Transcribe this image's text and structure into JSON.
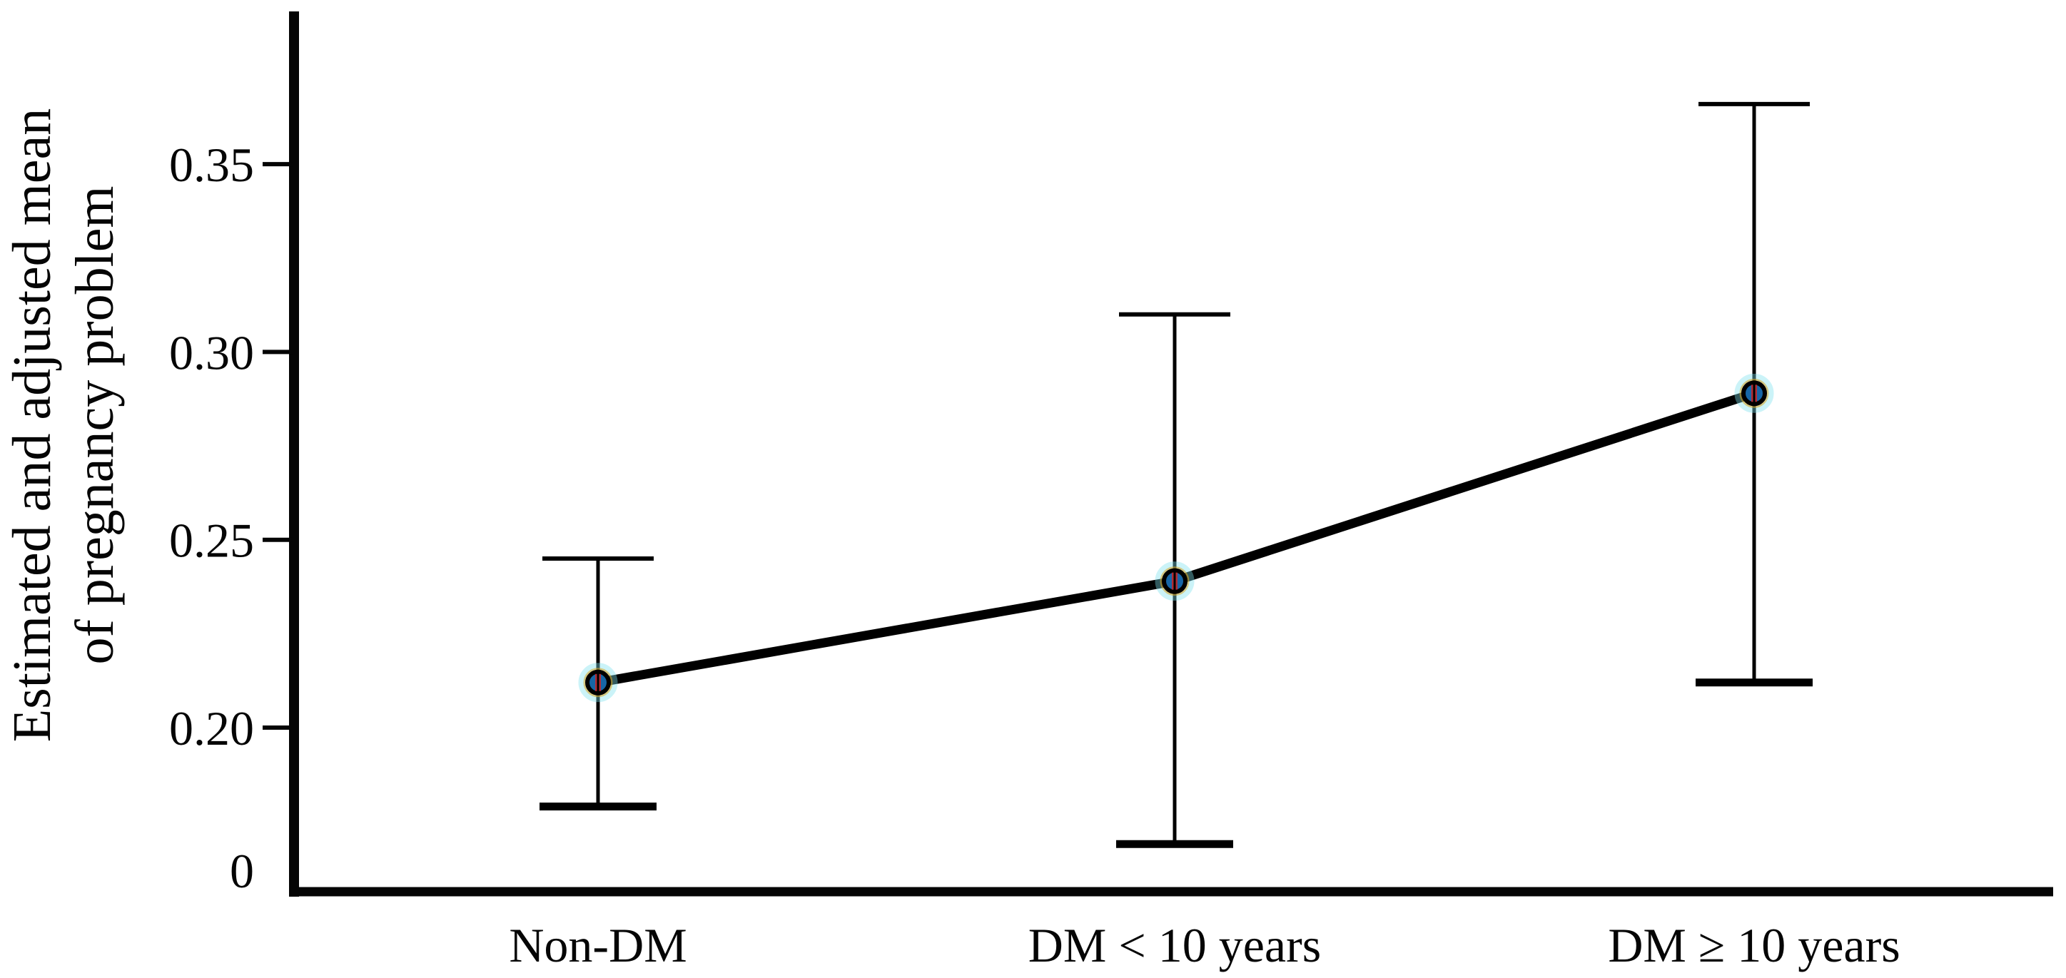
{
  "chart_data": {
    "type": "line",
    "title": "",
    "ylabel": "Estimated and adjusted mean of pregnancy problem",
    "ylabel_lines": [
      "Estimated and adjusted mean",
      "of pregnancy problem"
    ],
    "xlabel": "",
    "categories": [
      "Non-DM",
      "DM < 10 years",
      "DM ≥ 10 years"
    ],
    "series": [
      {
        "name": "Estimated and adjusted mean of pregnancy problem",
        "values": [
          0.212,
          0.239,
          0.289
        ],
        "ci_lower": [
          0.179,
          0.169,
          0.212
        ],
        "ci_upper": [
          0.245,
          0.31,
          0.366
        ]
      }
    ],
    "error_bars": "capped vertical error bars",
    "yticks": [
      0.35,
      0.3,
      0.25,
      0.2
    ],
    "ytick_labels": [
      "0.35",
      "0.30",
      "0.25",
      "0.20"
    ],
    "origin_label": "0",
    "ylim_display": [
      0.156,
      0.392
    ],
    "grid": false,
    "legend_position": "none",
    "colors": {
      "axis": "#050505",
      "line": "#000000",
      "marker_fill": "#1766a6",
      "marker_outline": "#000000",
      "marker_glow": "#7ee0ee",
      "marker_ring": "#d9a520",
      "marker_artifact": "#cc2222",
      "background": "#ffffff"
    }
  }
}
